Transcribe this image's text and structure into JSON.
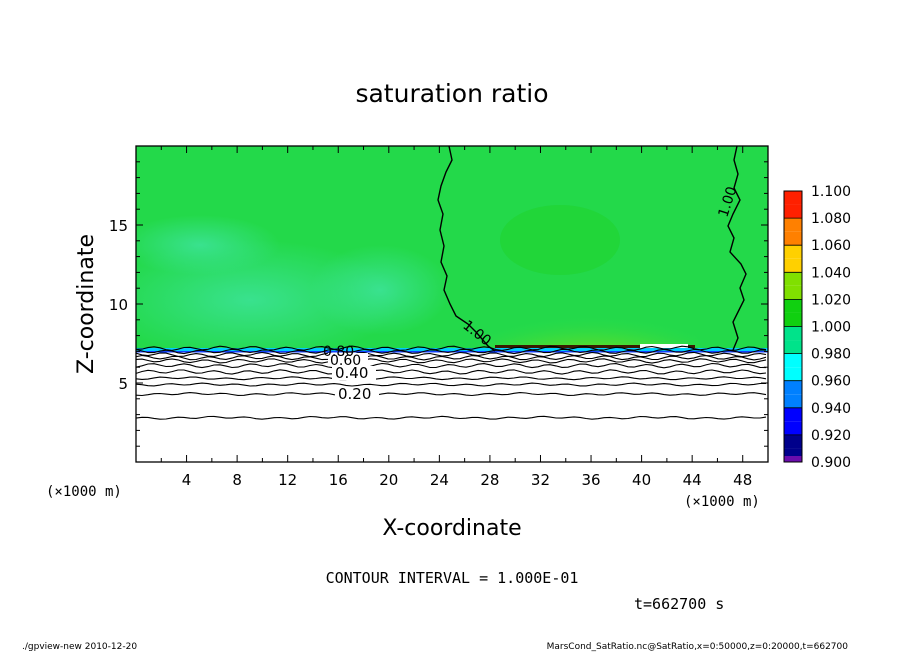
{
  "chart_data": {
    "type": "heatmap",
    "title": "saturation ratio",
    "xlabel": "X-coordinate",
    "ylabel": "Z-coordinate",
    "x_unit": "(×1000 m)",
    "y_unit": "(×1000 m)",
    "xlim": [
      0,
      50
    ],
    "ylim": [
      0,
      20
    ],
    "x_ticks": [
      "4",
      "8",
      "12",
      "16",
      "20",
      "24",
      "28",
      "32",
      "36",
      "40",
      "44",
      "48"
    ],
    "y_ticks": [
      "5",
      "10",
      "15"
    ],
    "colorbar": {
      "levels": [
        "0.900",
        "0.920",
        "0.940",
        "0.960",
        "0.980",
        "1.000",
        "1.020",
        "1.040",
        "1.060",
        "1.080",
        "1.100"
      ],
      "colors": [
        "#6a0dad",
        "#00008b",
        "#0000ff",
        "#0080ff",
        "#00ffff",
        "#00e38a",
        "#10d010",
        "#80e000",
        "#ffd000",
        "#ff8000",
        "#ff2000",
        "#ff9a9a"
      ]
    },
    "contours": [
      {
        "label": "0.20",
        "z": 4.3
      },
      {
        "label": "0.40",
        "z": 5.7
      },
      {
        "label": "0.60",
        "z": 6.4
      },
      {
        "label": "0.80",
        "z": 6.8
      },
      {
        "label": "1.00",
        "z": 7.2
      }
    ],
    "contour_interval": "CONTOUR INTERVAL = 1.000E-01",
    "time": "t=662700 s"
  },
  "footer": {
    "left": "./gpview-new   2010-12-20",
    "right": "MarsCond_SatRatio.nc@SatRatio,x=0:50000,z=0:20000,t=662700"
  },
  "colors": {
    "background": "#ffffff",
    "field_main": "#23d94a",
    "field_lower": "#34e19a"
  }
}
